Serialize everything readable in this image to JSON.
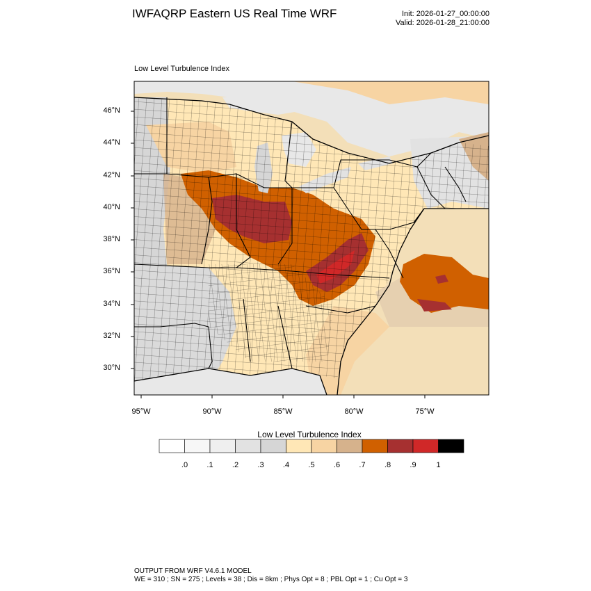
{
  "header": {
    "title": "IWFAQRP Eastern US Real Time WRF",
    "init": "Init: 2026-01-27_00:00:00",
    "valid": "Valid: 2026-01-28_21:00:00"
  },
  "map": {
    "field_label": "Low Level Turbulence Index",
    "lat_labels": [
      "46°N",
      "44°N",
      "42°N",
      "40°N",
      "38°N",
      "36°N",
      "34°N",
      "32°N",
      "30°N"
    ],
    "lon_labels": [
      "95°W",
      "90°W",
      "85°W",
      "80°W",
      "75°W"
    ]
  },
  "colorbar": {
    "title": "Low Level Turbulence Index",
    "ticks": [
      ".0",
      ".1",
      ".2",
      ".3",
      ".4",
      ".5",
      ".6",
      ".7",
      ".8",
      ".9",
      "1"
    ],
    "colors": [
      "#ffffff",
      "#f7f7f7",
      "#efefef",
      "#e2e2e2",
      "#d6d6d6",
      "#ffe7b6",
      "#f7d4a3",
      "#d6b28c",
      "#d06000",
      "#a63030",
      "#d02828",
      "#000000"
    ]
  },
  "footer": {
    "line1": "OUTPUT FROM WRF V4.6.1 MODEL",
    "line2": "WE = 310 ; SN = 275 ; Levels = 38 ; Dis = 8km ; Phys Opt = 8 ; PBL Opt = 1 ; Cu Opt = 3"
  }
}
